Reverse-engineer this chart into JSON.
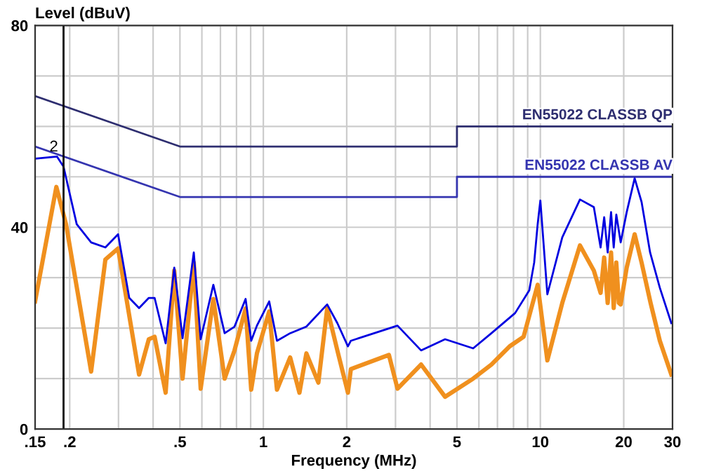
{
  "chart_data": {
    "type": "line",
    "xlabel": "Frequency (MHz)",
    "ylabel": "Level (dBuV)",
    "log": "x",
    "grid": true,
    "legend": false,
    "marker": "none",
    "line_style": "solid",
    "xlim": [
      0.15,
      30
    ],
    "ylim": [
      0,
      80
    ],
    "xticks": [
      {
        "value": 0.15,
        "label": ".15"
      },
      {
        "value": 0.2,
        "label": ".2"
      },
      {
        "value": 0.3,
        "label": null
      },
      {
        "value": 0.4,
        "label": null
      },
      {
        "value": 0.5,
        "label": ".5"
      },
      {
        "value": 0.6,
        "label": null
      },
      {
        "value": 0.7,
        "label": null
      },
      {
        "value": 0.8,
        "label": null
      },
      {
        "value": 0.9,
        "label": null
      },
      1,
      2,
      {
        "value": 3,
        "label": null
      },
      {
        "value": 4,
        "label": null
      },
      5,
      {
        "value": 6,
        "label": null
      },
      {
        "value": 7,
        "label": null
      },
      {
        "value": 8,
        "label": null
      },
      {
        "value": 9,
        "label": null
      },
      10,
      20,
      30
    ],
    "yticks": [
      0,
      {
        "value": 10,
        "label": null
      },
      {
        "value": 20,
        "label": null
      },
      {
        "value": 30,
        "label": null
      },
      40,
      {
        "value": 50,
        "label": null
      },
      {
        "value": 60,
        "label": null
      },
      {
        "value": 70,
        "label": null
      },
      80
    ],
    "ref_lines": [
      {
        "axis": "x",
        "value": 0.19,
        "color": "#000000"
      }
    ],
    "annotations": [
      {
        "text": "2",
        "x": 0.19,
        "y": 54
      }
    ],
    "series": [
      {
        "name": "EN55022 CLASSB QP",
        "color": "#2e2e70",
        "x": [
          0.15,
          0.5,
          5,
          5,
          30
        ],
        "values": [
          66,
          56,
          56,
          60,
          60
        ]
      },
      {
        "name": "EN55022 CLASSB AV",
        "color": "#3535b0",
        "x": [
          0.15,
          0.5,
          5,
          5,
          30
        ],
        "values": [
          56,
          46,
          46,
          50,
          50
        ]
      },
      {
        "color": "#f0901e",
        "x": [
          0.15,
          0.179,
          0.194,
          0.239,
          0.269,
          0.299,
          0.356,
          0.386,
          0.405,
          0.444,
          0.477,
          0.511,
          0.561,
          0.594,
          0.66,
          0.725,
          0.787,
          0.863,
          0.904,
          0.948,
          1.05,
          1.12,
          1.25,
          1.35,
          1.43,
          1.58,
          1.7,
          1.85,
          2.02,
          2.07,
          2.84,
          3.05,
          3.71,
          4.53,
          5.72,
          6.66,
          7.75,
          8.7,
          9.78,
          10.6,
          12.0,
          13.9,
          15.6,
          16.5,
          17.0,
          17.5,
          18.0,
          18.4,
          18.8,
          19.2,
          19.5,
          20.5,
          21.9,
          23.2,
          25.0,
          27.0,
          29.7
        ],
        "values": [
          25.3,
          48,
          40.6,
          11.4,
          33.6,
          35.8,
          10.8,
          17.8,
          18.3,
          7.2,
          31.4,
          10,
          33,
          8,
          25.8,
          10,
          15.6,
          23.9,
          7.8,
          15,
          23.3,
          7.8,
          14.2,
          7.2,
          15,
          9.2,
          23.9,
          15.6,
          7.2,
          11.9,
          14.7,
          8,
          12.8,
          6.4,
          10,
          12.8,
          16.4,
          18.3,
          28.6,
          13.6,
          25,
          36.4,
          31.4,
          27,
          34,
          25,
          35,
          24,
          33,
          25,
          24.7,
          32,
          38.6,
          33,
          25,
          17.5,
          10.8
        ]
      },
      {
        "color": "#0000e0",
        "x": [
          0.15,
          0.18,
          0.19,
          0.212,
          0.239,
          0.269,
          0.299,
          0.328,
          0.356,
          0.386,
          0.405,
          0.444,
          0.477,
          0.511,
          0.561,
          0.594,
          0.66,
          0.725,
          0.787,
          0.863,
          0.904,
          0.948,
          1.05,
          1.12,
          1.25,
          1.43,
          1.7,
          1.85,
          2.02,
          2.07,
          3.05,
          3.71,
          4.53,
          5.72,
          6.66,
          8.11,
          9.12,
          9.5,
          9.78,
          10.0,
          10.6,
          12.0,
          13.9,
          15.6,
          16.5,
          17.0,
          17.5,
          18.0,
          18.4,
          18.8,
          19.5,
          20.5,
          21.9,
          23.2,
          24.9,
          27.0,
          29.7
        ],
        "values": [
          53.6,
          54,
          52,
          40.6,
          37,
          36,
          38.6,
          26,
          24,
          26,
          26,
          17,
          32,
          18,
          35,
          17.8,
          28.6,
          19,
          20.3,
          25.8,
          17.5,
          20.5,
          25.3,
          17.5,
          19,
          20.3,
          24.7,
          21,
          16.4,
          17.5,
          20.5,
          15.6,
          17.8,
          16,
          19,
          23,
          27.5,
          33,
          40.6,
          45.3,
          26.7,
          38,
          45.5,
          44,
          36,
          42,
          35,
          43,
          36,
          42.5,
          37,
          43,
          49.7,
          45,
          35,
          28,
          21
        ]
      }
    ]
  }
}
